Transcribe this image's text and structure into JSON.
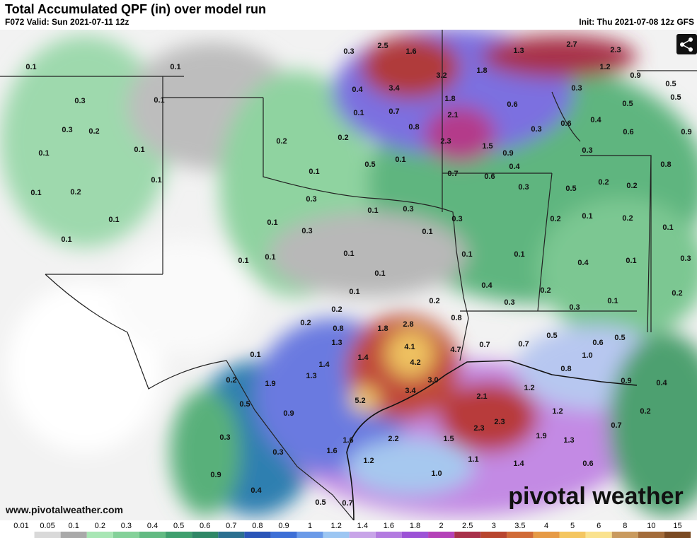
{
  "header": {
    "title": "Total Accumulated QPF (in) over model run",
    "valid": "F072 Valid: Sun 2021-07-11 12z",
    "init": "Init: Thu 2021-07-08 12z GFS"
  },
  "map_labels": [
    "0.1",
    "0.1",
    "0.3",
    "2.5",
    "1.6",
    "1.3",
    "2.7",
    "2.3",
    "1.2",
    "0.9",
    "0.5",
    "0.5",
    "3.2",
    "1.8",
    "3.4",
    "0.4",
    "0.3",
    "0.3",
    "0.1",
    "1.8",
    "0.6",
    "0.5",
    "0.1",
    "0.7",
    "2.1",
    "0.3",
    "0.2",
    "0.8",
    "0.3",
    "0.6",
    "0.4",
    "0.6",
    "0.9",
    "0.2",
    "0.2",
    "2.3",
    "1.5",
    "0.1",
    "0.1",
    "0.9",
    "0.3",
    "0.5",
    "0.1",
    "0.4",
    "0.8",
    "0.1",
    "0.7",
    "0.6",
    "0.1",
    "0.2",
    "0.2",
    "0.1",
    "0.2",
    "0.3",
    "0.3",
    "0.5",
    "0.1",
    "0.3",
    "0.1",
    "0.1",
    "0.3",
    "0.2",
    "0.1",
    "0.2",
    "0.1",
    "0.3",
    "0.1",
    "0.1",
    "0.1",
    "0.1",
    "0.1",
    "0.4",
    "0.1",
    "0.3",
    "0.1",
    "0.1",
    "0.1",
    "0.4",
    "0.2",
    "0.1",
    "0.3",
    "0.1",
    "0.2",
    "0.2",
    "0.2",
    "0.3",
    "0.2",
    "0.8",
    "1.8",
    "2.8",
    "0.8",
    "0.5",
    "0.6",
    "0.5",
    "1.3",
    "4.1",
    "4.7",
    "0.7",
    "0.7",
    "0.1",
    "1.4",
    "1.0",
    "1.4",
    "4.2",
    "0.8",
    "1.3",
    "3.0",
    "0.2",
    "1.9",
    "0.9",
    "0.4",
    "1.2",
    "3.4",
    "2.1",
    "5.2",
    "0.5",
    "0.9",
    "1.2",
    "0.2",
    "2.3",
    "0.7",
    "0.3",
    "1.9",
    "2.3",
    "2.2",
    "1.5",
    "1.3",
    "1.6",
    "1.6",
    "0.3",
    "1.1",
    "1.2",
    "1.4",
    "0.6",
    "0.9",
    "1.0",
    "0.4",
    "0.5",
    "0.7"
  ],
  "watermark": "www.pivotalweather.com",
  "logo": "pivotal weather",
  "colorbar": {
    "ticks": [
      "0.01",
      "0.05",
      "0.1",
      "0.2",
      "0.3",
      "0.4",
      "0.5",
      "0.6",
      "0.7",
      "0.8",
      "0.9",
      "1",
      "1.2",
      "1.4",
      "1.6",
      "1.8",
      "2",
      "2.5",
      "3",
      "3.5",
      "4",
      "5",
      "6",
      "8",
      "10",
      "15"
    ],
    "colors": [
      "#ffffff",
      "#d9d9d9",
      "#a9a9a9",
      "#a8e6b4",
      "#84d199",
      "#62ba82",
      "#3f9f6e",
      "#2f8766",
      "#2b6f8f",
      "#2a55b8",
      "#3d6fd6",
      "#6a9ae8",
      "#9cc6f2",
      "#c8a4e8",
      "#b37be0",
      "#9c52d6",
      "#b441b8",
      "#a8304a",
      "#b8452e",
      "#d06a36",
      "#e69a45",
      "#f4c660",
      "#fae28e",
      "#c99a5e",
      "#a36c3a",
      "#7a4a22"
    ]
  }
}
